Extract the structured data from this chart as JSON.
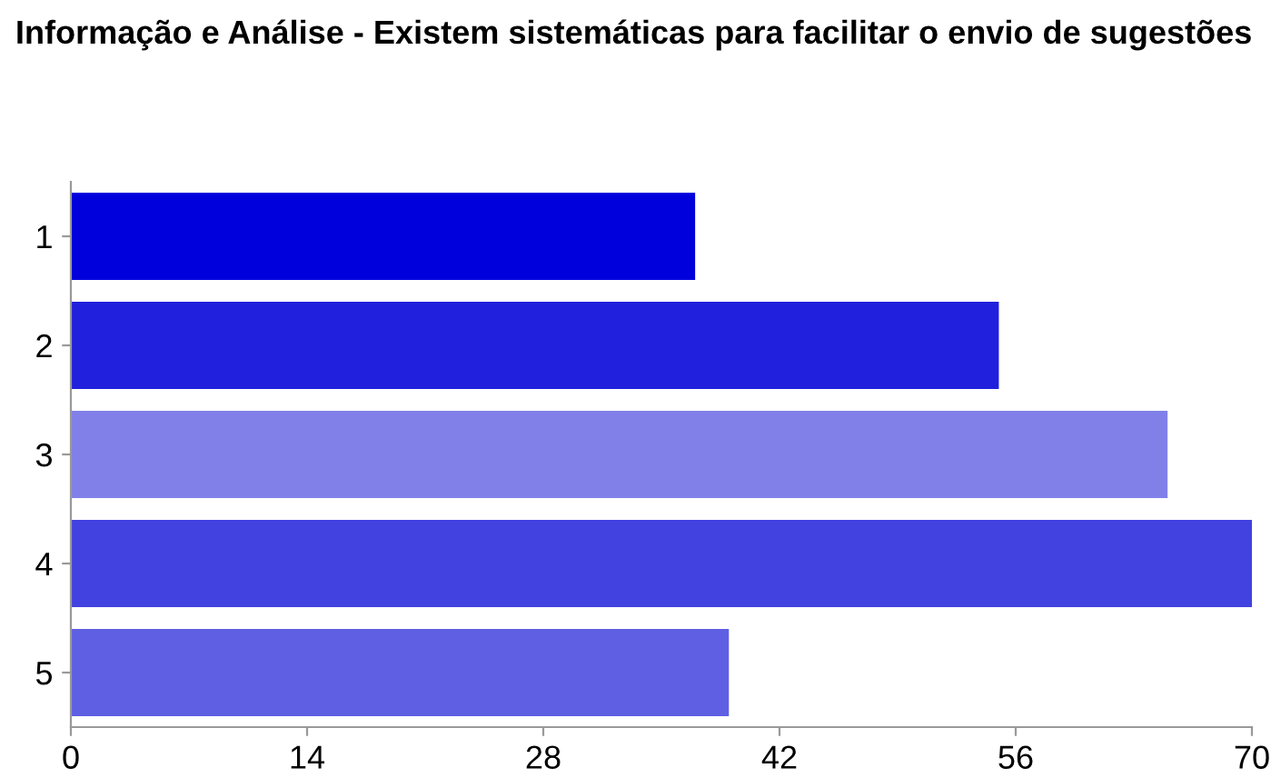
{
  "chart_data": {
    "type": "bar",
    "orientation": "horizontal",
    "title": "Informação e Análise - Existem sistemáticas para facilitar o envio de sugestões",
    "categories": [
      "1",
      "2",
      "3",
      "4",
      "5"
    ],
    "values": [
      37,
      55,
      65,
      70,
      39
    ],
    "colors": [
      "#0000dd",
      "#2020dd",
      "#8080e8",
      "#4242e0",
      "#5f5fe3"
    ],
    "xlim": [
      0,
      70
    ],
    "xticks": [
      0,
      14,
      28,
      42,
      56,
      70
    ],
    "grid": false,
    "legend": false
  }
}
